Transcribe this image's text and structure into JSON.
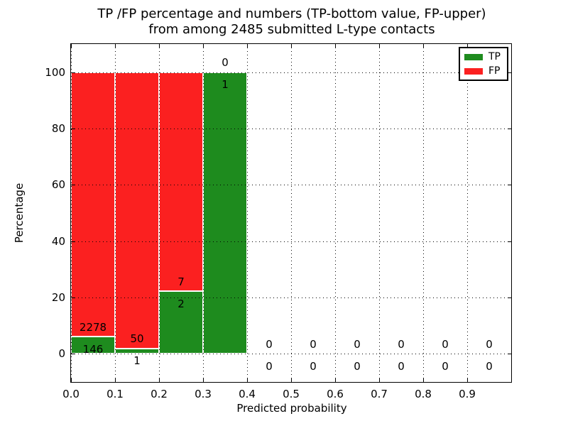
{
  "chart_data": {
    "type": "bar",
    "stacked": true,
    "title_lines": [
      "TP /FP percentage and numbers (TP-bottom value, FP-upper)",
      "from among 2485 submitted L-type contacts"
    ],
    "total_submitted_contacts": 2485,
    "xlabel": "Predicted probability",
    "ylabel": "Percentage",
    "xlim": [
      0.0,
      1.0
    ],
    "ylim": [
      -10,
      110
    ],
    "grid": "dotted",
    "legend_position": "upper right",
    "x_ticks": [
      {
        "value": 0.0,
        "label": "0.0"
      },
      {
        "value": 0.1,
        "label": "0.1"
      },
      {
        "value": 0.2,
        "label": "0.2"
      },
      {
        "value": 0.3,
        "label": "0.3"
      },
      {
        "value": 0.4,
        "label": "0.4"
      },
      {
        "value": 0.5,
        "label": "0.5"
      },
      {
        "value": 0.6,
        "label": "0.6"
      },
      {
        "value": 0.7,
        "label": "0.7"
      },
      {
        "value": 0.8,
        "label": "0.8"
      },
      {
        "value": 0.9,
        "label": "0.9"
      }
    ],
    "y_ticks": [
      {
        "value": 0,
        "label": "0"
      },
      {
        "value": 20,
        "label": "20"
      },
      {
        "value": 40,
        "label": "40"
      },
      {
        "value": 60,
        "label": "60"
      },
      {
        "value": 80,
        "label": "80"
      },
      {
        "value": 100,
        "label": "100"
      }
    ],
    "legend": {
      "entries": [
        {
          "label": "TP",
          "color": "#1e8b1e"
        },
        {
          "label": "FP",
          "color": "#fb2020"
        }
      ]
    },
    "bins": [
      {
        "range": [
          0.0,
          0.1
        ],
        "tp_count": 146,
        "fp_count": 2278,
        "tp_pct": 6.02,
        "fp_pct": 93.98
      },
      {
        "range": [
          0.1,
          0.2
        ],
        "tp_count": 1,
        "fp_count": 50,
        "tp_pct": 1.96,
        "fp_pct": 98.04
      },
      {
        "range": [
          0.2,
          0.3
        ],
        "tp_count": 2,
        "fp_count": 7,
        "tp_pct": 22.22,
        "fp_pct": 77.78
      },
      {
        "range": [
          0.3,
          0.4
        ],
        "tp_count": 1,
        "fp_count": 0,
        "tp_pct": 100.0,
        "fp_pct": 0.0
      },
      {
        "range": [
          0.4,
          0.5
        ],
        "tp_count": 0,
        "fp_count": 0,
        "tp_pct": 0.0,
        "fp_pct": 0.0
      },
      {
        "range": [
          0.5,
          0.6
        ],
        "tp_count": 0,
        "fp_count": 0,
        "tp_pct": 0.0,
        "fp_pct": 0.0
      },
      {
        "range": [
          0.6,
          0.7
        ],
        "tp_count": 0,
        "fp_count": 0,
        "tp_pct": 0.0,
        "fp_pct": 0.0
      },
      {
        "range": [
          0.7,
          0.8
        ],
        "tp_count": 0,
        "fp_count": 0,
        "tp_pct": 0.0,
        "fp_pct": 0.0
      },
      {
        "range": [
          0.8,
          0.9
        ],
        "tp_count": 0,
        "fp_count": 0,
        "tp_pct": 0.0,
        "fp_pct": 0.0
      },
      {
        "range": [
          0.9,
          1.0
        ],
        "tp_count": 0,
        "fp_count": 0,
        "tp_pct": 0.0,
        "fp_pct": 0.0
      }
    ]
  },
  "colors": {
    "tp": "#1e8b1e",
    "fp": "#fb2020",
    "bar_edge": "#ffffff",
    "grid": "#000000",
    "spine": "#000000",
    "background": "#ffffff",
    "text": "#000000"
  }
}
